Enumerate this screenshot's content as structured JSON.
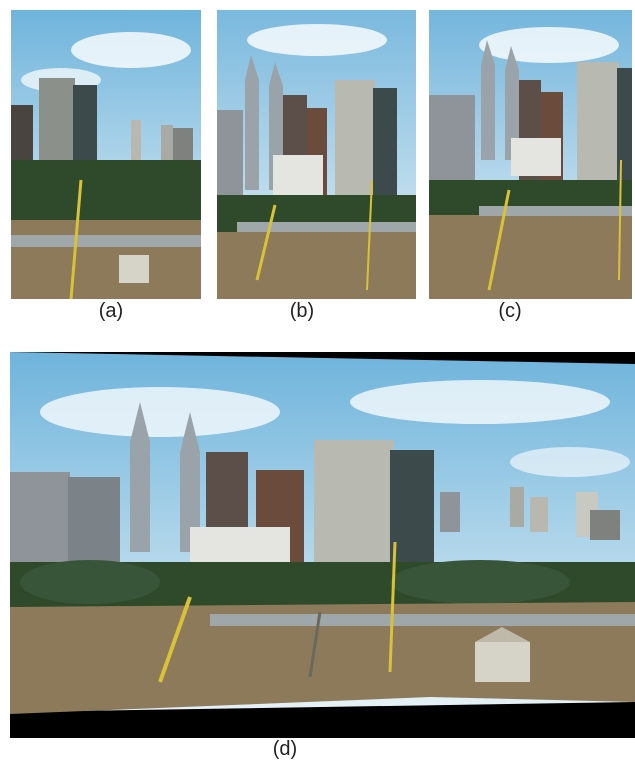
{
  "captions": {
    "a": "(a)",
    "b": "(b)",
    "c": "(c)",
    "d": "(d)"
  },
  "scene": {
    "sky_top": "#6fb4dc",
    "sky_bottom": "#dfeef6",
    "tower_color": "#9aa3aa",
    "building_dark": "#3d4a4c",
    "building_light": "#c7c9c2",
    "trees": "#2e4a2a",
    "ground": "#8c7a5a",
    "crane": "#d8c23a"
  }
}
